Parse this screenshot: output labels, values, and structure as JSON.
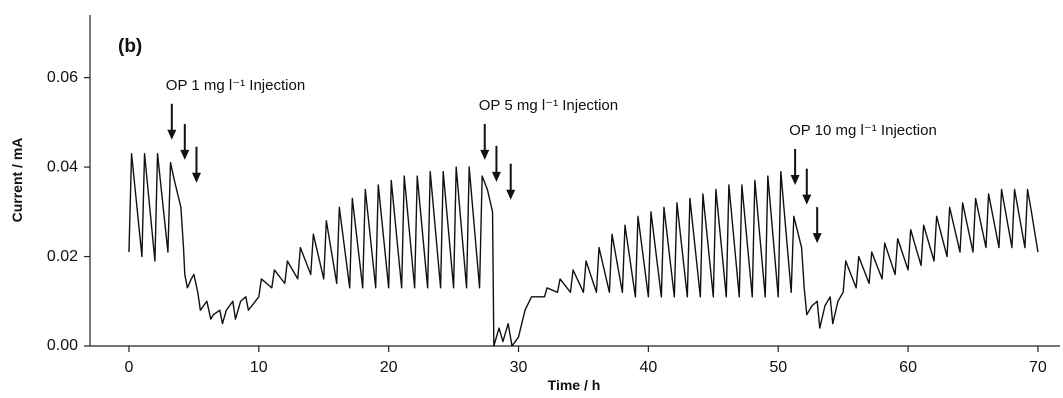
{
  "chart_data": {
    "type": "line",
    "title": "(b)",
    "x_label": "Time / h",
    "y_label": "Current / mA",
    "xlim": [
      -3,
      71.7
    ],
    "ylim": [
      0,
      0.074
    ],
    "xticks": [
      0,
      10,
      20,
      30,
      40,
      50,
      60,
      70
    ],
    "yticks": [
      {
        "value": 0,
        "label": "0.00"
      },
      {
        "value": 0.02,
        "label": "0.02"
      },
      {
        "value": 0.04,
        "label": "0.04"
      },
      {
        "value": 0.06,
        "label": "0.06"
      }
    ],
    "grid": false,
    "annotations": [
      {
        "text": "OP  1 mg l⁻¹ Injection",
        "arrows": [
          {
            "x": 3.3,
            "y": 0.0461
          },
          {
            "x": 4.3,
            "y": 0.0416
          },
          {
            "x": 5.2,
            "y": 0.0365
          }
        ]
      },
      {
        "text": "OP  5 mg l⁻¹ Injection",
        "arrows": [
          {
            "x": 27.4,
            "y": 0.0416
          },
          {
            "x": 28.3,
            "y": 0.0367
          },
          {
            "x": 29.4,
            "y": 0.0327
          }
        ]
      },
      {
        "text": "OP  10 mg l⁻¹ Injection",
        "arrows": [
          {
            "x": 51.3,
            "y": 0.036
          },
          {
            "x": 52.2,
            "y": 0.0316
          },
          {
            "x": 53.0,
            "y": 0.023
          }
        ]
      }
    ],
    "series": [
      {
        "color": "#111111",
        "x": [
          0,
          0.2,
          1,
          1.2,
          2,
          2.2,
          3,
          3.2,
          3.5,
          4,
          4.2,
          4.3,
          4.5,
          4.8,
          5,
          5.3,
          5.5,
          6,
          6.3,
          6.5,
          7,
          7.2,
          7.5,
          8,
          8.2,
          8.6,
          9,
          9.2,
          10,
          10.2,
          11,
          11.2,
          12,
          12.2,
          13,
          13.2,
          14,
          14.2,
          15,
          15.2,
          16,
          16.2,
          17,
          17.2,
          18,
          18.2,
          19,
          19.2,
          20,
          20.2,
          21,
          21.2,
          22,
          22.2,
          23,
          23.2,
          24,
          24.2,
          25,
          25.2,
          26,
          26.2,
          27,
          27.2,
          27.6,
          28,
          28.1,
          28.5,
          28.8,
          29.2,
          29.5,
          30,
          30.5,
          31,
          31.5,
          32,
          32.2,
          33,
          33.2,
          34,
          34.2,
          35,
          35.2,
          36,
          36.2,
          37,
          37.2,
          38,
          38.2,
          39,
          39.2,
          40,
          40.2,
          41,
          41.2,
          42,
          42.2,
          43,
          43.2,
          44,
          44.2,
          45,
          45.2,
          46,
          46.2,
          47,
          47.2,
          48,
          48.2,
          49,
          49.2,
          50,
          50.2,
          51,
          51.2,
          51.8,
          52,
          52.2,
          52.6,
          53,
          53.2,
          53.6,
          54,
          54.2,
          54.6,
          55,
          55.2,
          56,
          56.2,
          57,
          57.2,
          58,
          58.2,
          59,
          59.2,
          60,
          60.2,
          61,
          61.2,
          62,
          62.2,
          63,
          63.2,
          64,
          64.2,
          65,
          65.2,
          66,
          66.2,
          67,
          67.2,
          68,
          68.2,
          69,
          69.2,
          69.5,
          70
        ],
        "values": [
          0.021,
          0.043,
          0.02,
          0.043,
          0.019,
          0.043,
          0.021,
          0.041,
          0.037,
          0.031,
          0.022,
          0.016,
          0.013,
          0.015,
          0.016,
          0.012,
          0.008,
          0.01,
          0.006,
          0.007,
          0.008,
          0.005,
          0.008,
          0.01,
          0.006,
          0.01,
          0.011,
          0.008,
          0.011,
          0.015,
          0.013,
          0.017,
          0.014,
          0.019,
          0.015,
          0.022,
          0.016,
          0.025,
          0.015,
          0.028,
          0.014,
          0.031,
          0.013,
          0.033,
          0.013,
          0.035,
          0.013,
          0.036,
          0.013,
          0.037,
          0.013,
          0.038,
          0.013,
          0.038,
          0.013,
          0.039,
          0.013,
          0.039,
          0.013,
          0.04,
          0.013,
          0.04,
          0.013,
          0.038,
          0.035,
          0.03,
          0.0,
          0.004,
          0.001,
          0.005,
          0.0,
          0.002,
          0.008,
          0.011,
          0.011,
          0.011,
          0.013,
          0.012,
          0.015,
          0.012,
          0.017,
          0.012,
          0.019,
          0.012,
          0.022,
          0.012,
          0.025,
          0.012,
          0.027,
          0.011,
          0.029,
          0.011,
          0.03,
          0.011,
          0.031,
          0.011,
          0.032,
          0.011,
          0.033,
          0.011,
          0.034,
          0.011,
          0.035,
          0.011,
          0.036,
          0.011,
          0.036,
          0.011,
          0.037,
          0.011,
          0.038,
          0.011,
          0.039,
          0.012,
          0.029,
          0.022,
          0.013,
          0.007,
          0.009,
          0.01,
          0.004,
          0.009,
          0.011,
          0.005,
          0.01,
          0.012,
          0.019,
          0.013,
          0.02,
          0.014,
          0.021,
          0.015,
          0.023,
          0.016,
          0.024,
          0.017,
          0.026,
          0.018,
          0.027,
          0.019,
          0.029,
          0.02,
          0.031,
          0.021,
          0.032,
          0.021,
          0.033,
          0.022,
          0.034,
          0.022,
          0.035,
          0.022,
          0.035,
          0.022,
          0.035,
          0.03,
          0.021
        ]
      }
    ]
  }
}
